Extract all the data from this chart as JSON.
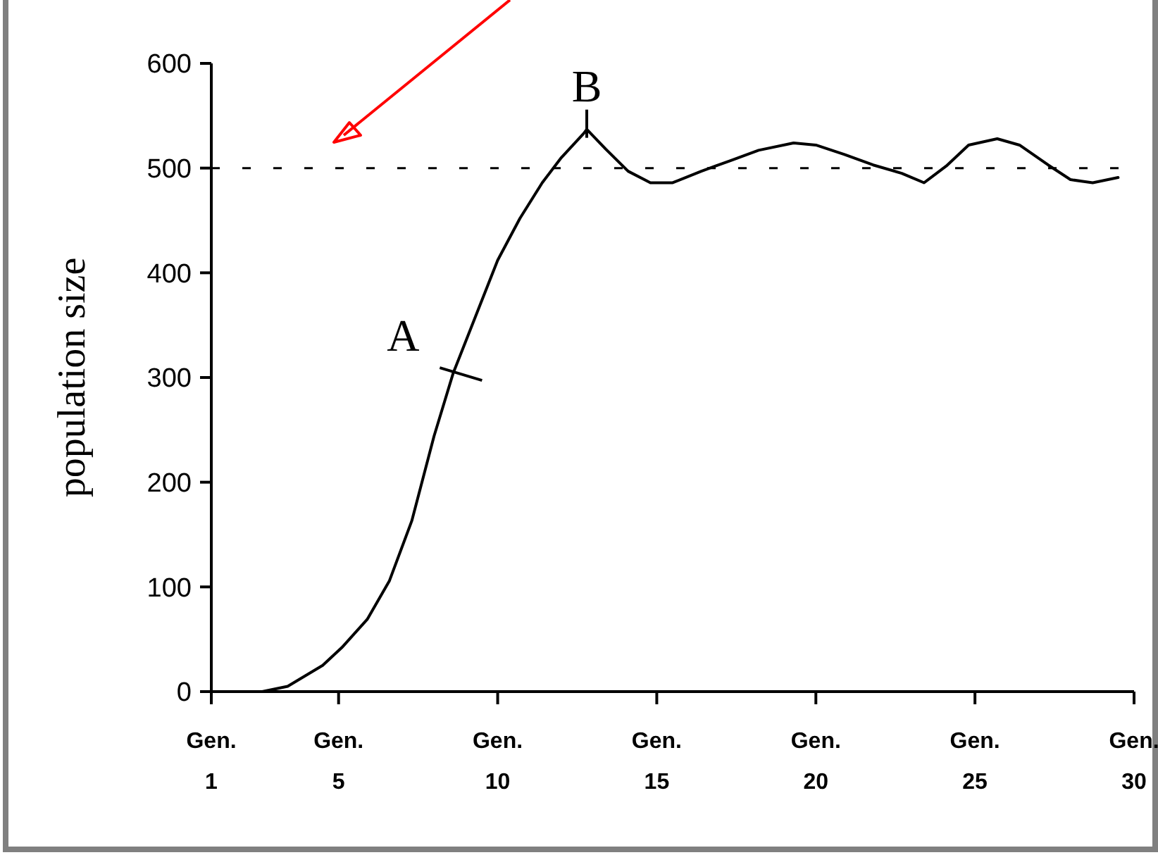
{
  "chart_data": {
    "type": "line",
    "ylabel": "population size",
    "xlim": [
      1,
      30
    ],
    "xticks": [
      {
        "value": 1,
        "label": "Gen. 1"
      },
      {
        "value": 5,
        "label": "Gen. 5"
      },
      {
        "value": 10,
        "label": "Gen. 10"
      },
      {
        "value": 15,
        "label": "Gen. 15"
      },
      {
        "value": 20,
        "label": "Gen. 20"
      },
      {
        "value": 25,
        "label": "Gen. 25"
      },
      {
        "value": 30,
        "label": "Gen. 30"
      }
    ],
    "ylim": [
      0,
      600
    ],
    "yticks": [
      0,
      100,
      200,
      300,
      400,
      500,
      600
    ],
    "grid": false,
    "marker": "none",
    "line_style": "solid",
    "series": [
      {
        "color": "#000000",
        "x": [
          1,
          2.6,
          3.4,
          4.5,
          5.1,
          5.9,
          6.6,
          7.3,
          8,
          8.6,
          9.3,
          10,
          10.7,
          11.4,
          12,
          12.7,
          12.8,
          13.4,
          14.1,
          14.8,
          15.5,
          16.4,
          17.3,
          18.2,
          19.3,
          20,
          20.9,
          21.8,
          22.7,
          23.4,
          24.1,
          24.8,
          25.7,
          26.4,
          27.3,
          28,
          28.7,
          29.5
        ],
        "values": [
          0,
          0,
          5,
          25,
          42,
          69,
          106,
          163,
          244,
          304,
          358,
          412,
          452,
          486,
          510,
          533,
          537,
          518,
          497,
          486,
          486,
          497,
          507,
          517,
          524,
          522,
          513,
          503,
          495,
          486,
          502,
          522,
          528,
          522,
          503,
          489,
          486,
          491
        ]
      }
    ],
    "ref_lines": [
      {
        "axis": "y",
        "value": 500,
        "color": "#000000",
        "line_style": "dashed"
      }
    ],
    "annotations": [
      {
        "text": "A",
        "x": 8.8,
        "y": 304
      },
      {
        "text": "B",
        "x": 12.8,
        "y": 537
      }
    ]
  }
}
